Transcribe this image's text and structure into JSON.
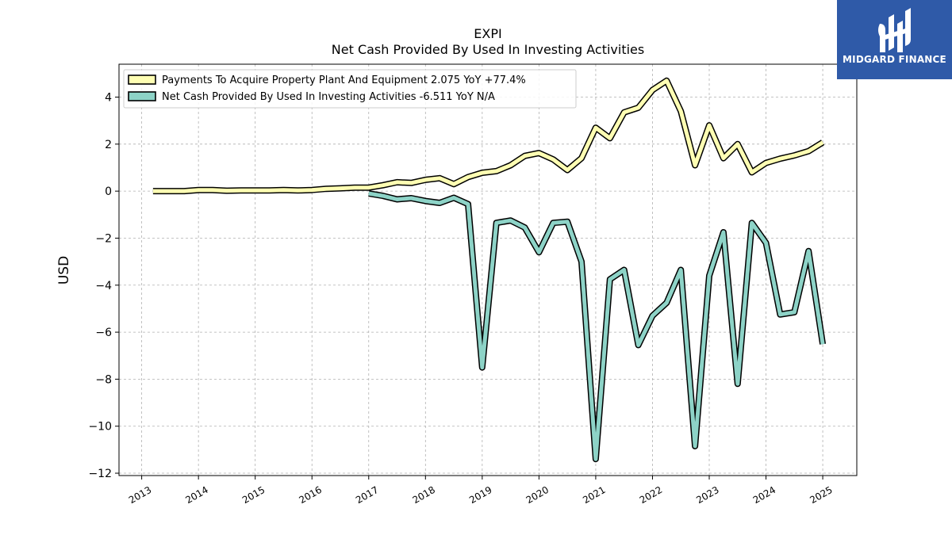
{
  "chart_data": {
    "type": "line",
    "title": "EXPI",
    "subtitle": "Net Cash Provided By Used In Investing Activities",
    "ylabel": "USD",
    "xlabel": "",
    "xlim": [
      2012.6,
      2025.6
    ],
    "ylim": [
      -12.1,
      5.4
    ],
    "yticks": [
      4,
      2,
      0,
      -2,
      -4,
      -6,
      -8,
      -10,
      -12
    ],
    "ytick_labels": [
      "4",
      "2",
      "0",
      "−2",
      "−4",
      "−6",
      "−8",
      "−10",
      "−12"
    ],
    "xticks": [
      2013,
      2014,
      2015,
      2016,
      2017,
      2018,
      2019,
      2020,
      2021,
      2022,
      2023,
      2024,
      2025
    ],
    "xtick_labels": [
      "2013",
      "2014",
      "2015",
      "2016",
      "2017",
      "2018",
      "2019",
      "2020",
      "2021",
      "2022",
      "2023",
      "2024",
      "2025"
    ],
    "grid": true,
    "legend_position": "top-left",
    "series": [
      {
        "name": "Payments To Acquire Property Plant And Equipment  2.075 YoY +77.4%",
        "color": "#ffffb3",
        "x": [
          2013.2,
          2013.5,
          2013.75,
          2014.0,
          2014.25,
          2014.5,
          2014.75,
          2015.0,
          2015.25,
          2015.5,
          2015.75,
          2016.0,
          2016.25,
          2016.5,
          2016.75,
          2017.0,
          2017.25,
          2017.5,
          2017.75,
          2018.0,
          2018.25,
          2018.5,
          2018.75,
          2019.0,
          2019.25,
          2019.5,
          2019.75,
          2020.0,
          2020.25,
          2020.5,
          2020.75,
          2021.0,
          2021.25,
          2021.5,
          2021.75,
          2022.0,
          2022.25,
          2022.5,
          2022.75,
          2023.0,
          2023.25,
          2023.5,
          2023.75,
          2024.0,
          2024.25,
          2024.5,
          2024.75,
          2025.0
        ],
        "y": [
          0.0,
          0.0,
          0.0,
          0.05,
          0.05,
          0.02,
          0.03,
          0.03,
          0.03,
          0.05,
          0.03,
          0.05,
          0.1,
          0.12,
          0.15,
          0.15,
          0.25,
          0.38,
          0.35,
          0.48,
          0.55,
          0.3,
          0.6,
          0.78,
          0.85,
          1.1,
          1.5,
          1.62,
          1.35,
          0.9,
          1.4,
          2.7,
          2.25,
          3.35,
          3.55,
          4.3,
          4.7,
          3.4,
          1.1,
          2.8,
          1.4,
          2.0,
          0.8,
          1.2,
          1.38,
          1.52,
          1.7,
          2.075
        ]
      },
      {
        "name": "Net Cash Provided By Used In Investing Activities  -6.511 YoY N/A",
        "color": "#8dd3c7",
        "x": [
          2017.0,
          2017.25,
          2017.5,
          2017.75,
          2018.0,
          2018.25,
          2018.5,
          2018.75,
          2019.0,
          2019.25,
          2019.5,
          2019.75,
          2020.0,
          2020.25,
          2020.5,
          2020.75,
          2021.0,
          2021.25,
          2021.5,
          2021.75,
          2022.0,
          2022.25,
          2022.5,
          2022.75,
          2023.0,
          2023.25,
          2023.5,
          2023.75,
          2024.0,
          2024.25,
          2024.5,
          2024.75,
          2025.0
        ],
        "y": [
          -0.1,
          -0.2,
          -0.35,
          -0.3,
          -0.42,
          -0.5,
          -0.28,
          -0.55,
          -7.5,
          -1.35,
          -1.25,
          -1.55,
          -2.6,
          -1.35,
          -1.3,
          -3.0,
          -11.4,
          -3.75,
          -3.35,
          -6.55,
          -5.3,
          -4.75,
          -3.35,
          -10.85,
          -3.6,
          -1.75,
          -8.2,
          -1.35,
          -2.2,
          -5.25,
          -5.15,
          -2.55,
          -6.511
        ]
      }
    ]
  },
  "logo": {
    "text": "MIDGARD FINANCE",
    "icon": "midgard-logo-icon",
    "bg_color": "#2f5aa8"
  }
}
